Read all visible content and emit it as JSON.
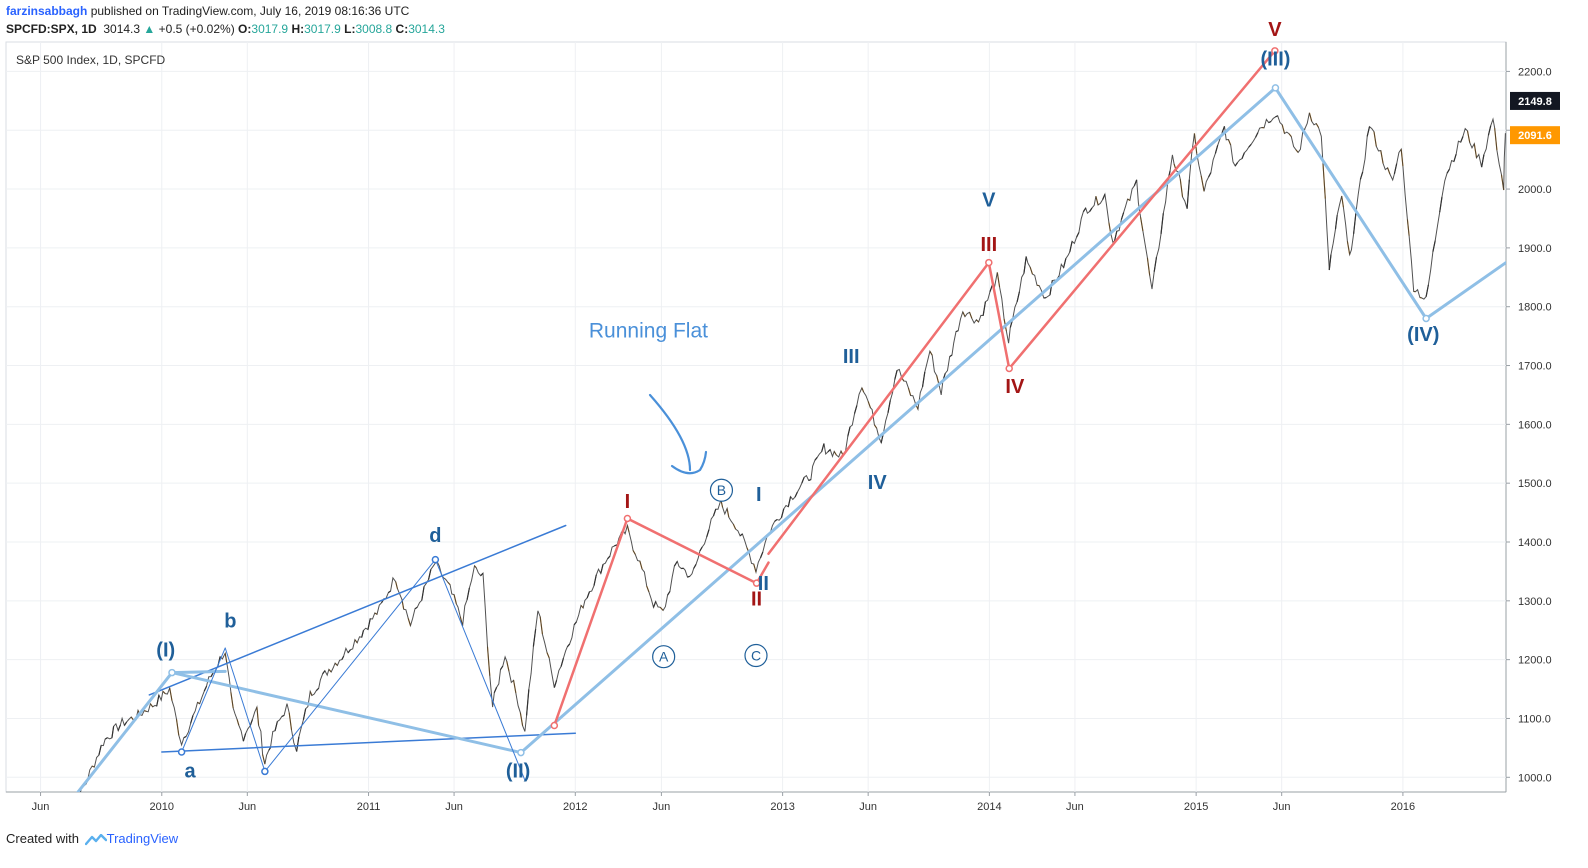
{
  "header": {
    "author": "farzinsabbagh",
    "published": "published on TradingView.com, July 16, 2019 08:16:36 UTC",
    "symbol": "SPCFD:SPX, 1D",
    "last": "3014.3",
    "change_icon": "triangle-up-icon",
    "change": "+0.5 (+0.02%)",
    "open_label": "O:",
    "open": "3017.9",
    "high_label": "H:",
    "high": "3017.9",
    "low_label": "L:",
    "low": "3008.8",
    "close_label": "C:",
    "close": "3014.3"
  },
  "legend": "S&P 500 Index, 1D, SPCFD",
  "footer": {
    "created": "Created with",
    "brand": "TradingView",
    "logo_icon": "tradingview-logo-icon"
  },
  "colors": {
    "up": "#26a69a",
    "price_line": "#333333",
    "blue_label": "#1f5f99",
    "red_label": "#a31515",
    "light_blue": "#8fbfe6",
    "blue_line": "#3a7bd5",
    "red_line": "#f07070",
    "annotation": "#4a90d9",
    "last_badge": "#ff9800"
  },
  "chart_data": {
    "type": "line",
    "title": "S&P 500 Index, 1D, SPCFD",
    "xlabel": "",
    "ylabel": "",
    "ylim": [
      975,
      2250
    ],
    "xlim": [
      "2009-04-01",
      "2016-07-01"
    ],
    "y_ticks": [
      "1000.0",
      "1100.0",
      "1200.0",
      "1300.0",
      "1400.0",
      "1500.0",
      "1600.0",
      "1700.0",
      "1800.0",
      "1900.0",
      "2000.0",
      "2100.0",
      "2200.0"
    ],
    "x_ticks": [
      {
        "date": "2009-06-01",
        "label": "Jun"
      },
      {
        "date": "2010-01-01",
        "label": "2010"
      },
      {
        "date": "2010-06-01",
        "label": "Jun"
      },
      {
        "date": "2011-01-01",
        "label": "2011"
      },
      {
        "date": "2011-06-01",
        "label": "Jun"
      },
      {
        "date": "2012-01-01",
        "label": "2012"
      },
      {
        "date": "2012-06-01",
        "label": "Jun"
      },
      {
        "date": "2013-01-01",
        "label": "2013"
      },
      {
        "date": "2013-06-01",
        "label": "Jun"
      },
      {
        "date": "2014-01-01",
        "label": "2014"
      },
      {
        "date": "2014-06-01",
        "label": "Jun"
      },
      {
        "date": "2015-01-01",
        "label": "2015"
      },
      {
        "date": "2015-06-01",
        "label": "Jun"
      },
      {
        "date": "2016-01-01",
        "label": "2016"
      }
    ],
    "price_badges": [
      {
        "value": 2149.8,
        "label": "2149.8",
        "color": "#131722"
      },
      {
        "value": 2091.6,
        "label": "2091.6",
        "color": "#ff9800"
      }
    ],
    "price_series": {
      "name": "SPX",
      "points": [
        [
          "2009-07-15",
          930
        ],
        [
          "2009-08-20",
          990
        ],
        [
          "2009-09-20",
          1060
        ],
        [
          "2009-10-20",
          1090
        ],
        [
          "2009-11-20",
          1105
        ],
        [
          "2009-12-20",
          1125
        ],
        [
          "2010-01-15",
          1150
        ],
        [
          "2010-02-05",
          1060
        ],
        [
          "2010-03-01",
          1110
        ],
        [
          "2010-03-25",
          1165
        ],
        [
          "2010-04-23",
          1215
        ],
        [
          "2010-05-07",
          1110
        ],
        [
          "2010-05-25",
          1070
        ],
        [
          "2010-06-18",
          1115
        ],
        [
          "2010-07-02",
          1025
        ],
        [
          "2010-07-20",
          1080
        ],
        [
          "2010-08-10",
          1120
        ],
        [
          "2010-08-27",
          1050
        ],
        [
          "2010-09-20",
          1140
        ],
        [
          "2010-10-20",
          1180
        ],
        [
          "2010-11-15",
          1205
        ],
        [
          "2010-12-20",
          1245
        ],
        [
          "2011-01-20",
          1285
        ],
        [
          "2011-02-18",
          1340
        ],
        [
          "2011-03-16",
          1260
        ],
        [
          "2011-04-29",
          1365
        ],
        [
          "2011-05-25",
          1320
        ],
        [
          "2011-06-16",
          1265
        ],
        [
          "2011-07-07",
          1355
        ],
        [
          "2011-07-22",
          1340
        ],
        [
          "2011-08-08",
          1120
        ],
        [
          "2011-08-30",
          1210
        ],
        [
          "2011-09-22",
          1130
        ],
        [
          "2011-10-04",
          1075
        ],
        [
          "2011-10-27",
          1285
        ],
        [
          "2011-11-25",
          1160
        ],
        [
          "2011-12-15",
          1215
        ],
        [
          "2012-01-15",
          1295
        ],
        [
          "2012-02-15",
          1355
        ],
        [
          "2012-03-15",
          1400
        ],
        [
          "2012-04-02",
          1420
        ],
        [
          "2012-04-20",
          1375
        ],
        [
          "2012-05-18",
          1295
        ],
        [
          "2012-06-04",
          1280
        ],
        [
          "2012-06-29",
          1365
        ],
        [
          "2012-07-25",
          1340
        ],
        [
          "2012-08-20",
          1415
        ],
        [
          "2012-09-14",
          1465
        ],
        [
          "2012-10-10",
          1430
        ],
        [
          "2012-11-15",
          1355
        ],
        [
          "2012-12-10",
          1420
        ],
        [
          "2013-01-15",
          1475
        ],
        [
          "2013-02-20",
          1515
        ],
        [
          "2013-03-15",
          1560
        ],
        [
          "2013-04-18",
          1545
        ],
        [
          "2013-05-21",
          1670
        ],
        [
          "2013-06-24",
          1575
        ],
        [
          "2013-07-22",
          1695
        ],
        [
          "2013-08-28",
          1630
        ],
        [
          "2013-09-18",
          1725
        ],
        [
          "2013-10-08",
          1655
        ],
        [
          "2013-11-15",
          1795
        ],
        [
          "2013-12-13",
          1775
        ],
        [
          "2014-01-15",
          1850
        ],
        [
          "2014-02-04",
          1740
        ],
        [
          "2014-03-07",
          1880
        ],
        [
          "2014-04-11",
          1815
        ],
        [
          "2014-05-20",
          1885
        ],
        [
          "2014-06-20",
          1965
        ],
        [
          "2014-07-24",
          1990
        ],
        [
          "2014-08-07",
          1910
        ],
        [
          "2014-09-18",
          2012
        ],
        [
          "2014-10-15",
          1825
        ],
        [
          "2014-11-20",
          2060
        ],
        [
          "2014-12-16",
          1970
        ],
        [
          "2014-12-29",
          2090
        ],
        [
          "2015-01-15",
          1995
        ],
        [
          "2015-02-20",
          2105
        ],
        [
          "2015-03-11",
          2040
        ],
        [
          "2015-04-20",
          2100
        ],
        [
          "2015-05-21",
          2130
        ],
        [
          "2015-06-30",
          2060
        ],
        [
          "2015-07-20",
          2130
        ],
        [
          "2015-08-10",
          2095
        ],
        [
          "2015-08-24",
          1865
        ],
        [
          "2015-09-15",
          1990
        ],
        [
          "2015-09-29",
          1880
        ],
        [
          "2015-11-03",
          2110
        ],
        [
          "2015-12-14",
          2010
        ],
        [
          "2015-12-29",
          2075
        ],
        [
          "2016-01-20",
          1835
        ],
        [
          "2016-02-11",
          1810
        ],
        [
          "2016-03-15",
          2020
        ],
        [
          "2016-04-20",
          2100
        ],
        [
          "2016-05-19",
          2045
        ],
        [
          "2016-06-08",
          2120
        ],
        [
          "2016-06-27",
          2000
        ],
        [
          "2016-06-30",
          2095
        ]
      ]
    },
    "wave_lines": [
      {
        "name": "intermediate-wave-line",
        "color": "#8fbfe6",
        "width": 3,
        "points": [
          [
            "2009-07-25",
            960
          ],
          [
            "2010-01-19",
            1178
          ],
          [
            "2011-09-27",
            1042
          ],
          [
            "2015-05-21",
            2172
          ],
          [
            "2016-02-11",
            1780
          ],
          [
            "2016-07-01",
            1875
          ]
        ]
      },
      {
        "name": "red-impulse-line",
        "color": "#f07070",
        "width": 2.5,
        "points": [
          [
            "2011-11-25",
            1088
          ],
          [
            "2012-04-02",
            1440
          ],
          [
            "2012-11-16",
            1330
          ],
          [
            "2012-12-07",
            1365
          ]
        ]
      },
      {
        "name": "red-impulse-line-2",
        "color": "#f07070",
        "width": 2.5,
        "points": [
          [
            "2012-12-07",
            1380
          ],
          [
            "2013-12-31",
            1875
          ],
          [
            "2014-02-05",
            1695
          ],
          [
            "2015-05-20",
            2235
          ]
        ]
      },
      {
        "name": "diagonal-inner-line",
        "color": "#3a7bd5",
        "width": 1,
        "points": [
          [
            "2010-02-05",
            1043
          ],
          [
            "2010-04-23",
            1220
          ],
          [
            "2010-07-02",
            1010
          ],
          [
            "2011-04-29",
            1370
          ],
          [
            "2011-10-04",
            995
          ]
        ]
      }
    ],
    "trend_lines": [
      {
        "name": "upper-trendline",
        "color": "#3a7bd5",
        "width": 1.5,
        "points": [
          [
            "2009-12-10",
            1140
          ],
          [
            "2011-12-15",
            1428
          ]
        ]
      },
      {
        "name": "lower-trendline",
        "color": "#3a7bd5",
        "width": 1.5,
        "points": [
          [
            "2010-01-01",
            1043
          ],
          [
            "2012-01-01",
            1075
          ]
        ]
      },
      {
        "name": "wave-a-b-connector",
        "color": "#8fbfe6",
        "width": 3,
        "points": [
          [
            "2010-01-19",
            1178
          ],
          [
            "2010-04-23",
            1180
          ]
        ]
      }
    ],
    "wave_labels": [
      {
        "text": "(I)",
        "color": "#1f5f99",
        "date": "2010-01-08",
        "value": 1205,
        "size": 20
      },
      {
        "text": "(II)",
        "color": "#1f5f99",
        "date": "2011-09-22",
        "value": 1000,
        "size": 20
      },
      {
        "text": "(III)",
        "color": "#1f5f99",
        "date": "2015-05-21",
        "value": 2210,
        "size": 20
      },
      {
        "text": "(IV)",
        "color": "#1f5f99",
        "date": "2016-02-06",
        "value": 1742,
        "size": 20
      },
      {
        "text": "a",
        "color": "#1f5f99",
        "date": "2010-02-20",
        "value": 1000,
        "size": 20
      },
      {
        "text": "b",
        "color": "#1f5f99",
        "date": "2010-05-02",
        "value": 1255,
        "size": 20
      },
      {
        "text": "d",
        "color": "#1f5f99",
        "date": "2011-04-29",
        "value": 1400,
        "size": 20
      },
      {
        "text": "I",
        "color": "#1f5f99",
        "date": "2012-11-20",
        "value": 1470,
        "size": 20
      },
      {
        "text": "II",
        "color": "#1f5f99",
        "date": "2012-11-28",
        "value": 1318,
        "size": 20
      },
      {
        "text": "III",
        "color": "#1f5f99",
        "date": "2013-05-02",
        "value": 1704,
        "size": 20
      },
      {
        "text": "IV",
        "color": "#1f5f99",
        "date": "2013-06-17",
        "value": 1490,
        "size": 20
      },
      {
        "text": "V",
        "color": "#1f5f99",
        "date": "2013-12-31",
        "value": 1970,
        "size": 20
      },
      {
        "text": "I",
        "color": "#a31515",
        "date": "2012-04-02",
        "value": 1458,
        "size": 20
      },
      {
        "text": "II",
        "color": "#a31515",
        "date": "2012-11-16",
        "value": 1292,
        "size": 20
      },
      {
        "text": "III",
        "color": "#a31515",
        "date": "2013-12-31",
        "value": 1895,
        "size": 20
      },
      {
        "text": "IV",
        "color": "#a31515",
        "date": "2014-02-15",
        "value": 1653,
        "size": 20
      },
      {
        "text": "V",
        "color": "#a31515",
        "date": "2015-05-20",
        "value": 2260,
        "size": 20
      }
    ],
    "circled_labels": [
      {
        "text": "A",
        "date": "2012-06-05",
        "value": 1205
      },
      {
        "text": "B",
        "date": "2012-09-15",
        "value": 1488
      },
      {
        "text": "C",
        "date": "2012-11-15",
        "value": 1207
      }
    ],
    "markers": [
      {
        "date": "2010-01-19",
        "value": 1178,
        "color": "#8fbfe6"
      },
      {
        "date": "2011-09-27",
        "value": 1042,
        "color": "#8fbfe6"
      },
      {
        "date": "2015-05-21",
        "value": 2172,
        "color": "#8fbfe6"
      },
      {
        "date": "2016-02-11",
        "value": 1780,
        "color": "#8fbfe6"
      },
      {
        "date": "2011-11-25",
        "value": 1088,
        "color": "#f07070"
      },
      {
        "date": "2012-04-02",
        "value": 1440,
        "color": "#f07070"
      },
      {
        "date": "2012-11-16",
        "value": 1330,
        "color": "#f07070"
      },
      {
        "date": "2013-12-31",
        "value": 1875,
        "color": "#f07070"
      },
      {
        "date": "2014-02-05",
        "value": 1695,
        "color": "#f07070"
      },
      {
        "date": "2015-05-20",
        "value": 2235,
        "color": "#f07070"
      },
      {
        "date": "2010-02-05",
        "value": 1043,
        "color": "#3a7bd5"
      },
      {
        "date": "2010-07-02",
        "value": 1010,
        "color": "#3a7bd5"
      },
      {
        "date": "2011-04-29",
        "value": 1370,
        "color": "#3a7bd5"
      }
    ],
    "annotations": [
      {
        "text": "Running Flat",
        "date": "2012-01-25",
        "value": 1748,
        "color": "#4a90d9",
        "size": 21
      }
    ]
  }
}
